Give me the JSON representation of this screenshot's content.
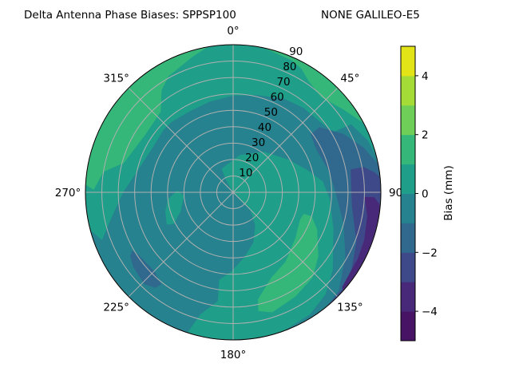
{
  "title_left": "Delta Antenna Phase Biases: SPPSP100",
  "title_right": "NONE GALILEO-E5",
  "chart_data": {
    "type": "polar-contourf",
    "theta_zero": "north",
    "theta_direction": "clockwise",
    "theta_ticks": [
      0,
      45,
      90,
      135,
      180,
      225,
      270,
      315
    ],
    "theta_tick_labels": [
      "0°",
      "45°",
      "90°",
      "135°",
      "180°",
      "225°",
      "270°",
      "315°"
    ],
    "r_lim": [
      0,
      90
    ],
    "r_ticks": [
      10,
      20,
      30,
      40,
      50,
      60,
      70,
      80,
      90
    ],
    "r_tick_labels": [
      "10",
      "20",
      "30",
      "40",
      "50",
      "60",
      "70",
      "80",
      "90"
    ],
    "grid": true,
    "colorbar": {
      "label": "Bias (mm)",
      "range": [
        -5,
        5
      ],
      "levels": [
        -5,
        -4,
        -3,
        -2,
        -1,
        0,
        1,
        2,
        3,
        4,
        5
      ],
      "colors": [
        "#471365",
        "#482878",
        "#3e4989",
        "#31688e",
        "#26828e",
        "#1f9e89",
        "#35b779",
        "#6ece58",
        "#a5db36",
        "#e2e418"
      ],
      "ticks": [
        -4,
        -2,
        0,
        2,
        4
      ],
      "tick_labels": [
        "−4",
        "−2",
        "0",
        "2",
        "4"
      ]
    },
    "background_band": [
      -1,
      0
    ],
    "regions_note_units": "[azimuth_deg, zenith_deg]",
    "regions": [
      {
        "band": [
          0,
          1
        ],
        "points": [
          [
            255,
            90
          ],
          [
            250,
            85
          ],
          [
            259,
            75
          ],
          [
            270,
            67
          ],
          [
            282,
            60
          ],
          [
            300,
            56
          ],
          [
            312,
            57
          ],
          [
            319,
            57
          ],
          [
            332,
            56
          ],
          [
            345,
            57
          ],
          [
            0,
            59
          ],
          [
            14,
            61
          ],
          [
            29,
            65
          ],
          [
            40,
            67
          ],
          [
            50,
            68
          ],
          [
            59,
            71
          ],
          [
            60,
            83
          ],
          [
            69,
            88
          ],
          [
            76,
            90
          ],
          [
            0,
            90
          ],
          [
            300,
            90
          ]
        ]
      },
      {
        "band": [
          0,
          1
        ],
        "points": [
          [
            334,
            16
          ],
          [
            10,
            23
          ],
          [
            37,
            31
          ],
          [
            59,
            39
          ],
          [
            73,
            47
          ],
          [
            83,
            55
          ],
          [
            94,
            59
          ],
          [
            110,
            65
          ],
          [
            128,
            77
          ],
          [
            138,
            84
          ],
          [
            148,
            88
          ],
          [
            160,
            90
          ],
          [
            170,
            90
          ],
          [
            198,
            90
          ],
          [
            195,
            77
          ],
          [
            188,
            67
          ],
          [
            189,
            54
          ],
          [
            181,
            48
          ],
          [
            170,
            40
          ],
          [
            158,
            33
          ],
          [
            146,
            24
          ],
          [
            136,
            15
          ],
          [
            138,
            6
          ],
          [
            326,
            2
          ],
          [
            330,
            9
          ]
        ]
      },
      {
        "band": [
          0,
          1
        ],
        "points": [
          [
            264,
            40
          ],
          [
            272,
            34
          ],
          [
            266,
            30
          ],
          [
            250,
            34
          ],
          [
            242,
            41
          ],
          [
            244,
            45
          ],
          [
            254,
            43
          ]
        ]
      },
      {
        "band": [
          1,
          2
        ],
        "points": [
          [
            273,
            90
          ],
          [
            271,
            85
          ],
          [
            279,
            80
          ],
          [
            285,
            69
          ],
          [
            303,
            64
          ],
          [
            318,
            66
          ],
          [
            325,
            76
          ],
          [
            331,
            81
          ],
          [
            343,
            86
          ],
          [
            350,
            90
          ],
          [
            310,
            90
          ]
        ]
      },
      {
        "band": [
          1,
          2
        ],
        "points": [
          [
            12,
            90
          ],
          [
            24,
            88
          ],
          [
            29,
            86
          ],
          [
            34,
            82
          ],
          [
            43,
            79
          ],
          [
            53,
            84
          ],
          [
            62,
            90
          ],
          [
            37,
            90
          ]
        ]
      },
      {
        "band": [
          1,
          2
        ],
        "points": [
          [
            107,
            45
          ],
          [
            107,
            50
          ],
          [
            114,
            56
          ],
          [
            127,
            65
          ],
          [
            137,
            71
          ],
          [
            149,
            74
          ],
          [
            162,
            77
          ],
          [
            168,
            74
          ],
          [
            167,
            67
          ],
          [
            156,
            57
          ],
          [
            143,
            53
          ],
          [
            126,
            47
          ],
          [
            112,
            44
          ]
        ]
      },
      {
        "band": [
          -2,
          -1
        ],
        "points": [
          [
            53,
            59
          ],
          [
            53,
            66
          ],
          [
            62,
            76
          ],
          [
            71,
            84
          ],
          [
            79,
            90
          ],
          [
            110,
            90
          ],
          [
            141,
            90
          ],
          [
            133,
            88
          ],
          [
            120,
            79
          ],
          [
            106,
            70
          ],
          [
            92,
            63
          ],
          [
            78,
            60
          ],
          [
            63,
            57
          ]
        ]
      },
      {
        "band": [
          -2,
          -1
        ],
        "points": [
          [
            240,
            71
          ],
          [
            236,
            69
          ],
          [
            225,
            68
          ],
          [
            218,
            71
          ],
          [
            219,
            75
          ],
          [
            224,
            78
          ],
          [
            233,
            76
          ],
          [
            238,
            74
          ]
        ]
      },
      {
        "band": [
          -3,
          -2
        ],
        "points": [
          [
            79,
            73
          ],
          [
            79,
            81
          ],
          [
            82,
            87
          ],
          [
            84,
            90
          ],
          [
            112,
            90
          ],
          [
            140,
            90
          ],
          [
            131,
            89
          ],
          [
            123,
            86
          ],
          [
            112,
            81
          ],
          [
            97,
            73
          ],
          [
            88,
            72
          ]
        ]
      },
      {
        "band": [
          -4,
          -3
        ],
        "points": [
          [
            92,
            80
          ],
          [
            92,
            86
          ],
          [
            95,
            90
          ],
          [
            114,
            90
          ],
          [
            132,
            90
          ],
          [
            131,
            88
          ],
          [
            118,
            86
          ],
          [
            110,
            85
          ],
          [
            100,
            83
          ]
        ]
      }
    ]
  }
}
